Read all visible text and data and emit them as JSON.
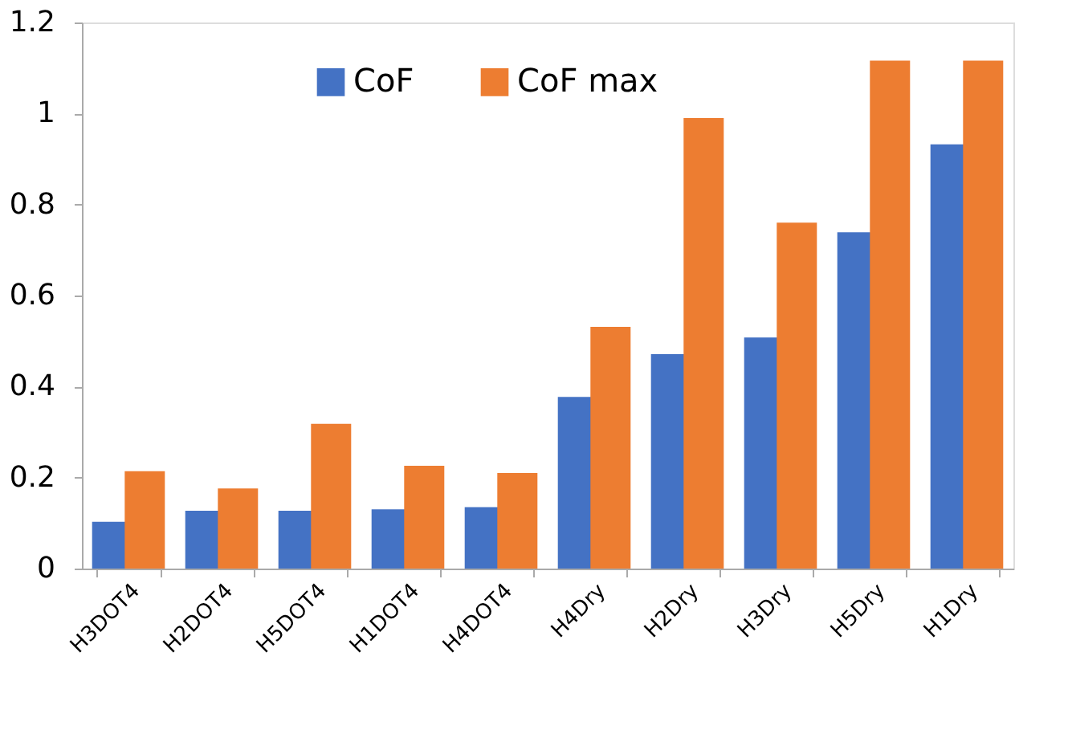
{
  "chart_data": {
    "type": "bar",
    "categories": [
      "H3DOT4",
      "H2DOT4",
      "H5DOT4",
      "H1DOT4",
      "H4DOT4",
      "H4Dry",
      "H2Dry",
      "H3Dry",
      "H5Dry",
      "H1Dry"
    ],
    "series": [
      {
        "name": "CoF",
        "color": "#4472c4",
        "values": [
          0.103,
          0.127,
          0.127,
          0.13,
          0.135,
          0.377,
          0.471,
          0.508,
          0.739,
          0.932
        ]
      },
      {
        "name": "CoF max",
        "color": "#ed7d31",
        "values": [
          0.214,
          0.176,
          0.318,
          0.226,
          0.21,
          0.531,
          0.99,
          0.76,
          1.116,
          1.116
        ]
      }
    ],
    "ylim": [
      0,
      1.2
    ],
    "yticks": [
      0,
      0.2,
      0.4,
      0.6,
      0.8,
      1,
      1.2
    ],
    "grid": false,
    "legend": "top"
  }
}
